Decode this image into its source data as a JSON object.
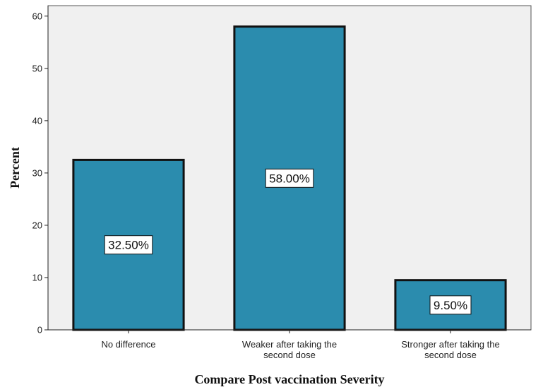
{
  "chart_data": {
    "type": "bar",
    "title": "",
    "xlabel": "Compare Post vaccination Severity",
    "ylabel": "Percent",
    "ylim": [
      0,
      62
    ],
    "yticks": [
      0,
      10,
      20,
      30,
      40,
      50,
      60
    ],
    "categories": [
      [
        "No difference"
      ],
      [
        "Weaker after taking the",
        "second dose"
      ],
      [
        "Stronger after taking the",
        "second dose"
      ]
    ],
    "values": [
      32.5,
      58.0,
      9.5
    ],
    "data_labels": [
      "32.50%",
      "58.00%",
      "9.50%"
    ],
    "grid": false,
    "legend": "none",
    "colors": {
      "bar_fill": "#2b8cae",
      "bar_stroke": "#111111",
      "plot_background": "#f0f0f0",
      "axis": "#222222"
    }
  }
}
